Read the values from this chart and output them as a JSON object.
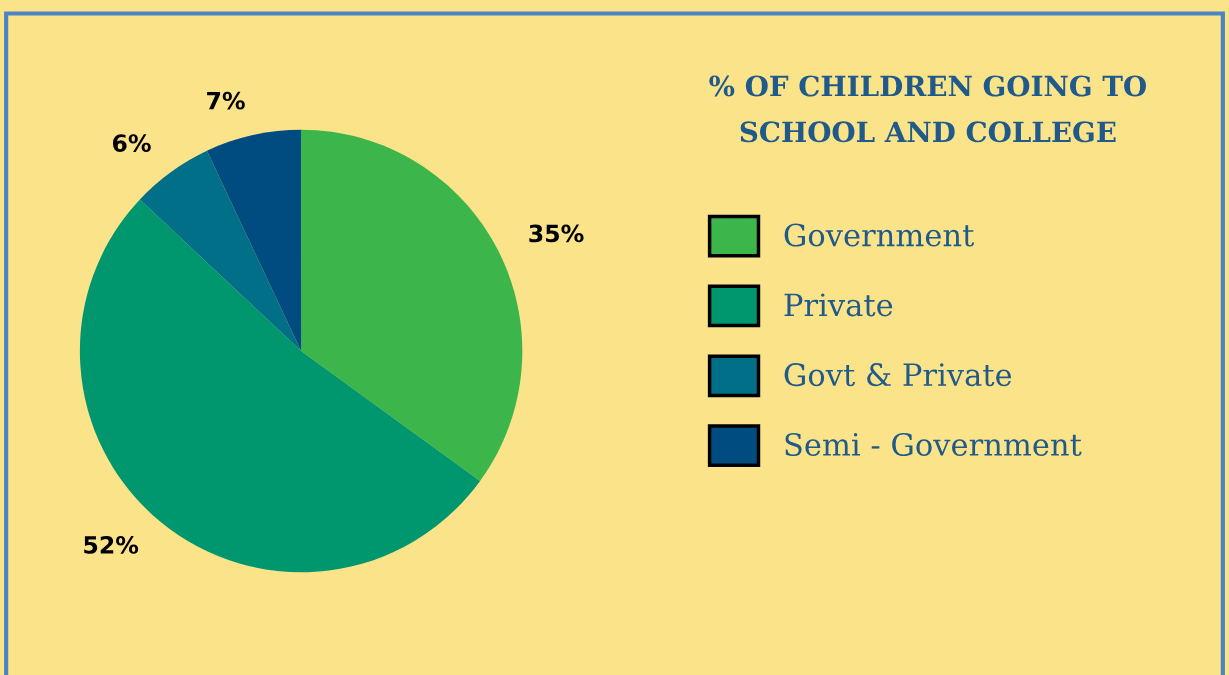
{
  "chart_data": {
    "type": "pie",
    "title": "% OF CHILDREN GOING TO\nSCHOOL AND COLLEGE",
    "categories": [
      "Government",
      "Private",
      "Govt & Private",
      "Semi - Government"
    ],
    "values": [
      35,
      52,
      6,
      7
    ],
    "colors": [
      "#3cb54a",
      "#00976f",
      "#006f87",
      "#004c80"
    ],
    "value_labels": [
      "35%",
      "52%",
      "6%",
      "7%"
    ],
    "legend": "right"
  }
}
